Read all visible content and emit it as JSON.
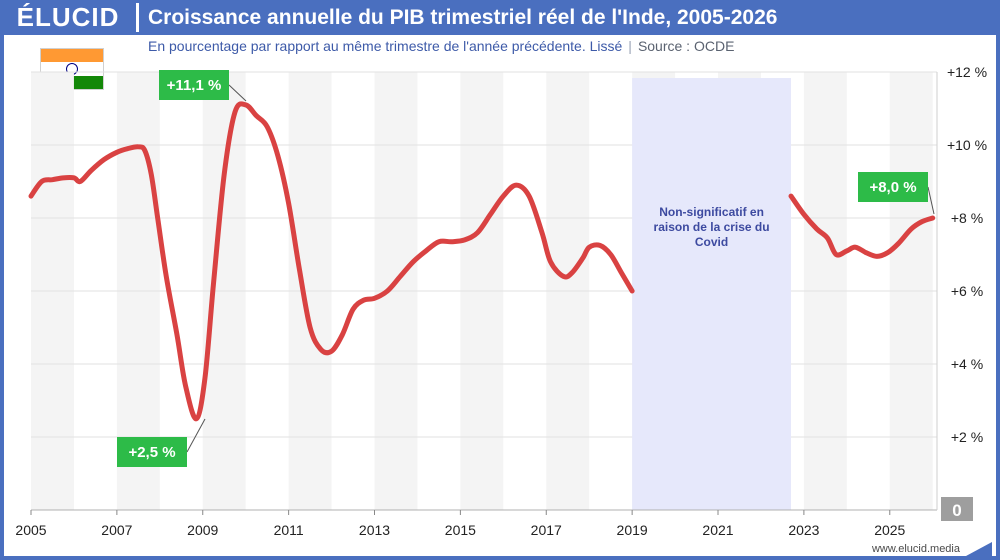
{
  "header": {
    "logo": "ÉLUCID",
    "title": "Croissance annuelle du PIB trimestriel réel de l'Inde, 2005-2026",
    "subtitle": "En pourcentage par rapport au même trimestre de l'année précédente. Lissé",
    "source": "Source : OCDE"
  },
  "footer": {
    "url": "www.elucid.media"
  },
  "colors": {
    "brand": "#4a6fbf",
    "line": "#d94242",
    "annotation": "#2dbb48",
    "covid_band": "#e6e8fb"
  },
  "chart_data": {
    "type": "line",
    "title": "Croissance annuelle du PIB trimestriel réel de l'Inde, 2005-2026",
    "xlabel": "",
    "ylabel": "",
    "xlim": [
      2005,
      2026.1
    ],
    "ylim": [
      0,
      12
    ],
    "x_ticks": [
      "2005",
      "2007",
      "2009",
      "2011",
      "2013",
      "2015",
      "2017",
      "2019",
      "2021",
      "2023",
      "2025"
    ],
    "y_ticks": [
      "+2 %",
      "+4 %",
      "+6 %",
      "+8 %",
      "+10 %",
      "+12 %"
    ],
    "zero_label": "0",
    "grid": true,
    "shaded_region": {
      "from": 2019.0,
      "to": 2022.7,
      "label": [
        "Non-significatif en",
        "raison de la crise du",
        "Covid"
      ]
    },
    "series": [
      {
        "segment": "before",
        "points": [
          [
            2005.0,
            8.6
          ],
          [
            2005.25,
            9.0
          ],
          [
            2005.5,
            9.05
          ],
          [
            2005.75,
            9.1
          ],
          [
            2006.0,
            9.1
          ],
          [
            2006.15,
            9.0
          ],
          [
            2006.4,
            9.3
          ],
          [
            2006.7,
            9.6
          ],
          [
            2007.0,
            9.8
          ],
          [
            2007.25,
            9.9
          ],
          [
            2007.5,
            9.95
          ],
          [
            2007.65,
            9.85
          ],
          [
            2007.8,
            9.2
          ],
          [
            2007.95,
            8.0
          ],
          [
            2008.15,
            6.4
          ],
          [
            2008.4,
            4.8
          ],
          [
            2008.6,
            3.4
          ],
          [
            2008.85,
            2.5
          ],
          [
            2009.05,
            3.6
          ],
          [
            2009.25,
            6.2
          ],
          [
            2009.5,
            9.2
          ],
          [
            2009.75,
            10.9
          ],
          [
            2010.0,
            11.1
          ],
          [
            2010.25,
            10.8
          ],
          [
            2010.5,
            10.5
          ],
          [
            2010.75,
            9.7
          ],
          [
            2011.0,
            8.4
          ],
          [
            2011.25,
            6.6
          ],
          [
            2011.5,
            5.0
          ],
          [
            2011.75,
            4.4
          ],
          [
            2012.0,
            4.35
          ],
          [
            2012.25,
            4.8
          ],
          [
            2012.5,
            5.5
          ],
          [
            2012.75,
            5.75
          ],
          [
            2013.0,
            5.8
          ],
          [
            2013.3,
            6.0
          ],
          [
            2013.6,
            6.4
          ],
          [
            2013.9,
            6.8
          ],
          [
            2014.2,
            7.1
          ],
          [
            2014.5,
            7.35
          ],
          [
            2014.8,
            7.35
          ],
          [
            2015.1,
            7.4
          ],
          [
            2015.4,
            7.6
          ],
          [
            2015.7,
            8.1
          ],
          [
            2016.0,
            8.6
          ],
          [
            2016.3,
            8.9
          ],
          [
            2016.6,
            8.6
          ],
          [
            2016.9,
            7.6
          ],
          [
            2017.1,
            6.8
          ],
          [
            2017.4,
            6.4
          ],
          [
            2017.6,
            6.5
          ],
          [
            2017.85,
            6.9
          ],
          [
            2018.0,
            7.2
          ],
          [
            2018.25,
            7.25
          ],
          [
            2018.5,
            7.0
          ],
          [
            2018.75,
            6.5
          ],
          [
            2019.0,
            6.0
          ]
        ]
      },
      {
        "segment": "after",
        "points": [
          [
            2022.7,
            8.6
          ],
          [
            2023.0,
            8.1
          ],
          [
            2023.3,
            7.7
          ],
          [
            2023.55,
            7.45
          ],
          [
            2023.75,
            7.0
          ],
          [
            2024.0,
            7.1
          ],
          [
            2024.2,
            7.2
          ],
          [
            2024.45,
            7.05
          ],
          [
            2024.7,
            6.95
          ],
          [
            2024.95,
            7.05
          ],
          [
            2025.2,
            7.3
          ],
          [
            2025.5,
            7.7
          ],
          [
            2025.75,
            7.9
          ],
          [
            2026.0,
            8.0
          ]
        ]
      }
    ],
    "annotations": [
      {
        "label": "+11,1 %",
        "x": 2010.0,
        "y": 11.1
      },
      {
        "label": "+2,5 %",
        "x": 2008.85,
        "y": 2.5
      },
      {
        "label": "+8,0 %",
        "x": 2026.0,
        "y": 8.0
      }
    ]
  }
}
